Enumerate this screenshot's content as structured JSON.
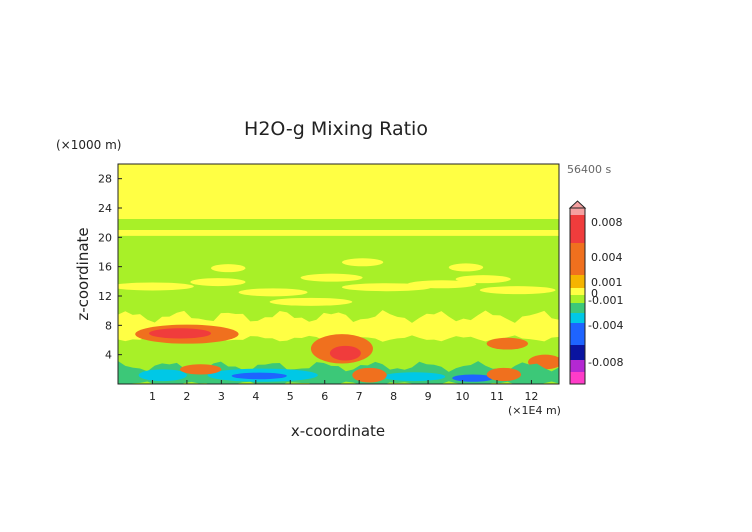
{
  "chart_data": {
    "type": "heatmap",
    "title": "H2O-g Mixing Ratio",
    "time_label": "56400 s",
    "xlabel": "x-coordinate",
    "ylabel": "z-coordinate",
    "x_unit": "(×1E4 m)",
    "y_unit": "(×1000 m)",
    "xlim": [
      0,
      12.8
    ],
    "ylim": [
      0,
      30
    ],
    "x_ticks": [
      "1",
      "2",
      "3",
      "4",
      "5",
      "6",
      "7",
      "8",
      "9",
      "10",
      "11",
      "12"
    ],
    "y_ticks": [
      "4",
      "8",
      "12",
      "16",
      "20",
      "24",
      "28"
    ],
    "colorbar_labels": [
      "0.008",
      "0.004",
      "0.001",
      "0",
      "-0.001",
      "-0.004",
      "-0.008"
    ],
    "colors": {
      "pos_large": "#f5a0a0",
      "pos_high": "#f03c3c",
      "pos_mid": "#f0701e",
      "pos_low": "#f5b400",
      "near_zero_pos": "#ffff44",
      "near_zero_neg": "#a8f028",
      "neg_low": "#3cc878",
      "neg_mid": "#00c8e6",
      "neg_high": "#1e64ff",
      "neg_large": "#0a14a0",
      "neg_extreme": "#b428d2",
      "neg_max": "#ff3cc8"
    },
    "regions": [
      {
        "name": "upper-yellow-band",
        "z_range": [
          22.5,
          30
        ],
        "value_class": "near_zero_pos"
      },
      {
        "name": "mid-green-band",
        "z_range": [
          9,
          22.5
        ],
        "value_class": "near_zero_neg"
      },
      {
        "name": "thin-yellow-layer",
        "z_range": [
          20.2,
          21.0
        ],
        "value_class": "near_zero_pos"
      },
      {
        "name": "lower-yellow-layer",
        "z_range": [
          6,
          9
        ],
        "value_class": "near_zero_pos"
      },
      {
        "name": "orange-lens-left",
        "x_range": [
          0.8,
          3.6
        ],
        "z_range": [
          5.5,
          8.2
        ],
        "value_class": "pos_mid"
      },
      {
        "name": "orange-patch-center",
        "x_range": [
          5.7,
          7.3
        ],
        "z_range": [
          3,
          7
        ],
        "value_class": "pos_mid"
      },
      {
        "name": "surface-blue-layer",
        "x_range": [
          0,
          12.8
        ],
        "z_range": [
          0,
          3
        ],
        "value_class": "neg_mid"
      }
    ]
  }
}
